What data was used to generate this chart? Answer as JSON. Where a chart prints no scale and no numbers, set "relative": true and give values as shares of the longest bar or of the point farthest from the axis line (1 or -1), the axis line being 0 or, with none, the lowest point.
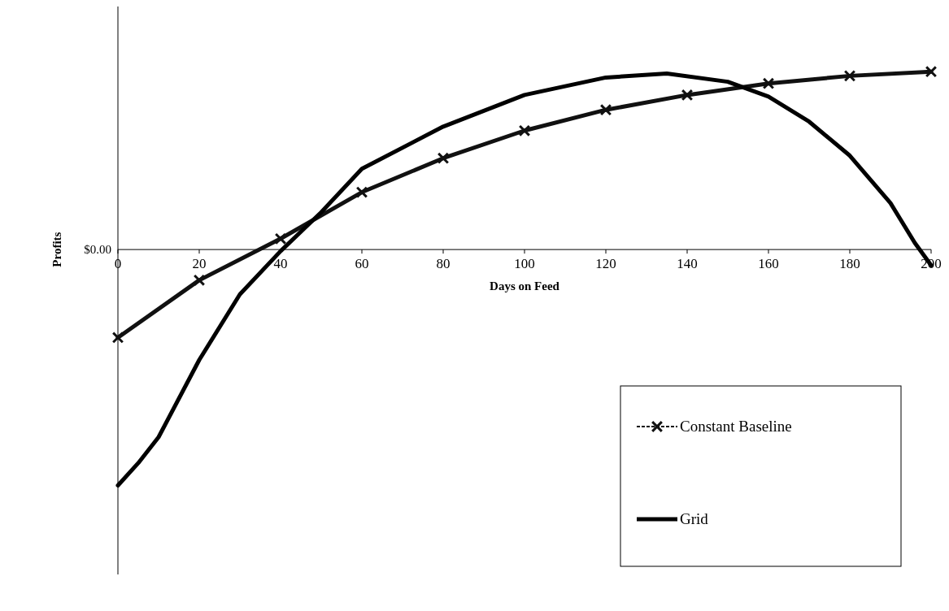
{
  "chart_data": {
    "type": "line",
    "xlabel": "Days on Feed",
    "ylabel": "Profits",
    "relative": true,
    "xlim": [
      0,
      200
    ],
    "xticks": [
      0,
      20,
      40,
      60,
      80,
      100,
      120,
      140,
      160,
      180,
      200
    ],
    "grid": false,
    "legend": "bottom right",
    "line_style": "solid",
    "annotations": [
      "$0.00"
    ],
    "series": [
      {
        "name": "Constant Baseline",
        "color": "#111111",
        "marker": "cross",
        "x": [
          0,
          20,
          40,
          60,
          80,
          100,
          120,
          140,
          160,
          180,
          200
        ],
        "values": [
          -0.373,
          -0.13,
          0.046,
          0.243,
          0.387,
          0.504,
          0.592,
          0.655,
          0.704,
          0.736,
          0.754
        ]
      },
      {
        "name": "Grid",
        "color": "#000000",
        "marker": "none",
        "x": [
          0,
          5,
          10,
          20,
          30,
          40,
          50,
          60,
          80,
          100,
          120,
          135,
          150,
          160,
          170,
          180,
          190,
          196,
          200
        ],
        "values": [
          -1,
          -0.905,
          -0.795,
          -0.468,
          -0.19,
          -0.007,
          0.158,
          0.342,
          0.521,
          0.655,
          0.729,
          0.746,
          0.711,
          0.648,
          0.542,
          0.398,
          0.197,
          0.028,
          -0.067
        ]
      }
    ]
  }
}
